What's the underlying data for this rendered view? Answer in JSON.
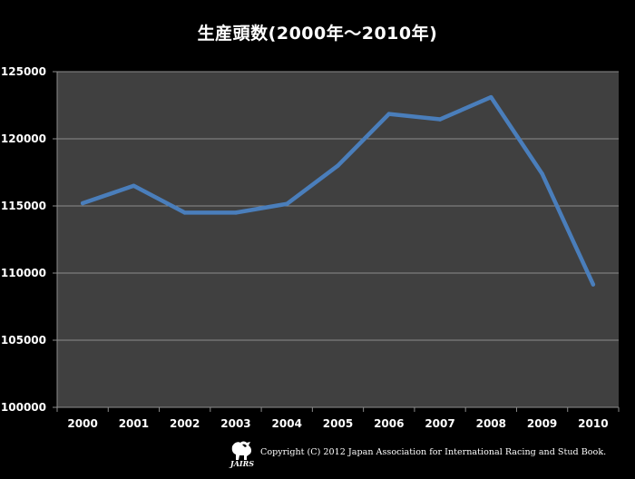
{
  "title": "生産頭数(2000年～2010年)",
  "copyright": "Copyright (C) 2012 Japan Association for International Racing and Stud Book.",
  "logo": {
    "text": "JAIRS"
  },
  "colors": {
    "background": "#000000",
    "plot_area": "#404040",
    "gridline": "#8c8c8c",
    "series_line": "#4a7ebb",
    "text": "#ffffff"
  },
  "chart_data": {
    "type": "line",
    "title": "生産頭数(2000年～2010年)",
    "xlabel": "",
    "ylabel": "",
    "categories": [
      "2000",
      "2001",
      "2002",
      "2003",
      "2004",
      "2005",
      "2006",
      "2007",
      "2008",
      "2009",
      "2010"
    ],
    "series": [
      {
        "values": [
          115200,
          116500,
          114500,
          114500,
          115150,
          118000,
          121850,
          121450,
          123100,
          117400,
          109150
        ]
      }
    ],
    "ylim": [
      100000,
      125000
    ],
    "yticks": [
      100000,
      105000,
      110000,
      115000,
      120000,
      125000
    ],
    "grid": true,
    "legend": "none"
  }
}
